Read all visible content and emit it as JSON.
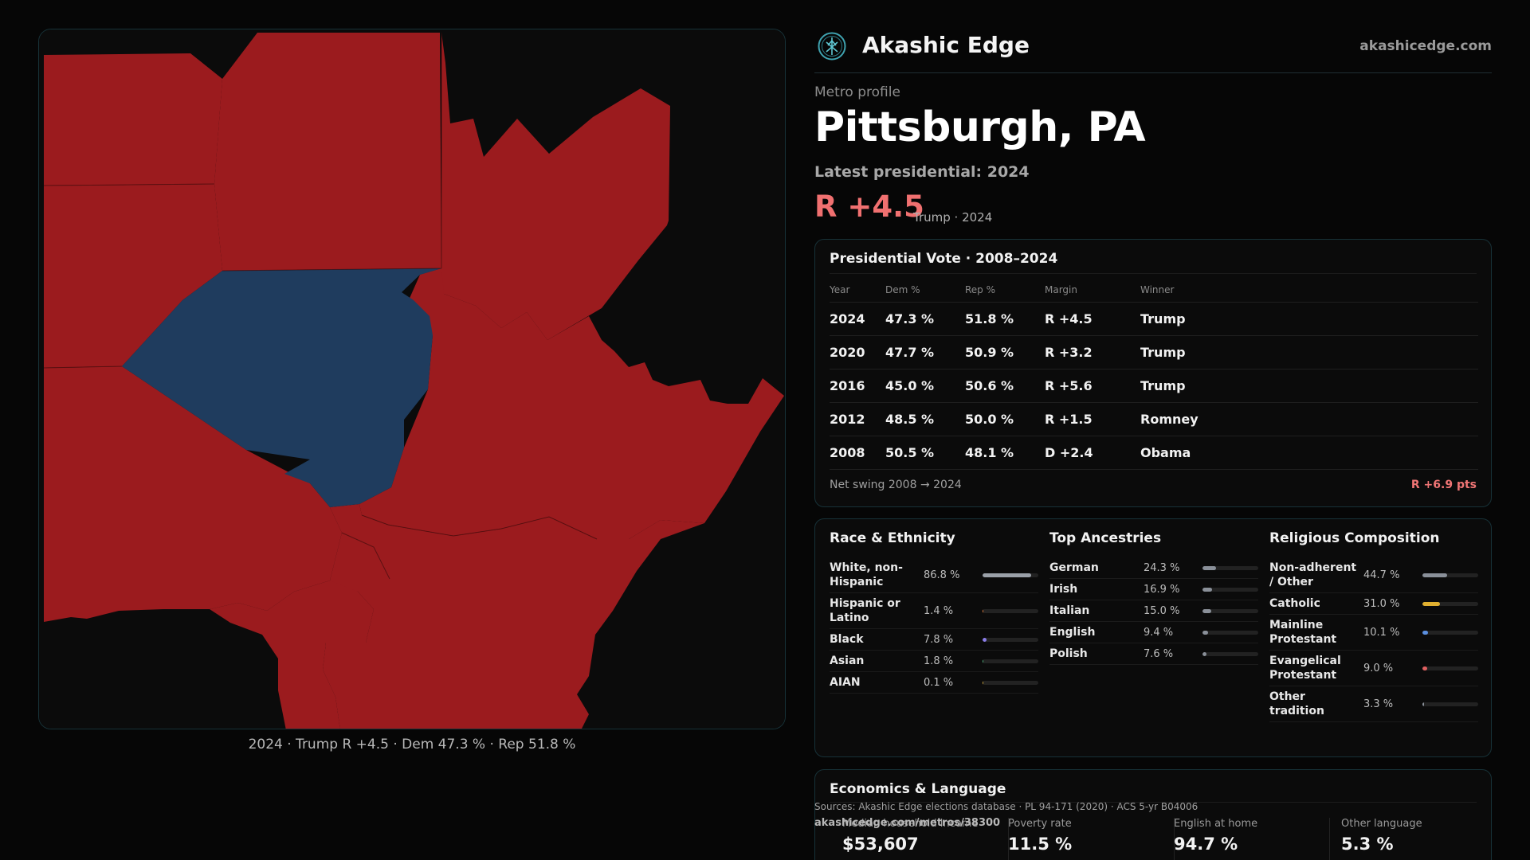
{
  "map": {
    "caption": "2024 · Trump R +4.5 · Dem 47.3 % · Rep 51.8 %",
    "colors": {
      "republican": "#9b1b1e",
      "democrat": "#1f3c5e",
      "background": "#0b0b0b"
    }
  },
  "brand": {
    "name": "Akashic Edge",
    "url": "akashicedge.com",
    "logo_icon": "compass-tree-icon"
  },
  "header": {
    "eyebrow": "Metro profile",
    "title": "Pittsburgh, PA",
    "latest": "Latest presidential: 2024",
    "margin": "R +4.5",
    "margin_sub": "Trump · 2024"
  },
  "vote": {
    "title": "Presidential Vote · 2008–2024",
    "columns": [
      "Year",
      "Dem %",
      "Rep %",
      "Margin",
      "Winner"
    ],
    "rows": [
      {
        "year": "2024",
        "dem": "47.3 %",
        "rep": "51.8 %",
        "margin": "R +4.5",
        "party": "R",
        "winner": "Trump"
      },
      {
        "year": "2020",
        "dem": "47.7 %",
        "rep": "50.9 %",
        "margin": "R +3.2",
        "party": "R",
        "winner": "Trump"
      },
      {
        "year": "2016",
        "dem": "45.0 %",
        "rep": "50.6 %",
        "margin": "R +5.6",
        "party": "R",
        "winner": "Trump"
      },
      {
        "year": "2012",
        "dem": "48.5 %",
        "rep": "50.0 %",
        "margin": "R +1.5",
        "party": "R",
        "winner": "Romney"
      },
      {
        "year": "2008",
        "dem": "50.5 %",
        "rep": "48.1 %",
        "margin": "D +2.4",
        "party": "D",
        "winner": "Obama"
      }
    ],
    "swing_label": "Net swing 2008 → 2024",
    "swing_value": "R +6.9 pts"
  },
  "race": {
    "title": "Race & Ethnicity",
    "items": [
      {
        "label": "White, non-Hispanic",
        "value": "86.8 %",
        "pct": 86.8,
        "color": "#9aa0a8"
      },
      {
        "label": "Hispanic or Latino",
        "value": "1.4 %",
        "pct": 1.4,
        "color": "#e07a3a"
      },
      {
        "label": "Black",
        "value": "7.8 %",
        "pct": 7.8,
        "color": "#8a7de8"
      },
      {
        "label": "Asian",
        "value": "1.8 %",
        "pct": 1.8,
        "color": "#4caf7a"
      },
      {
        "label": "AIAN",
        "value": "0.1 %",
        "pct": 0.1,
        "color": "#c9a13a"
      }
    ]
  },
  "ancestry": {
    "title": "Top Ancestries",
    "items": [
      {
        "label": "German",
        "value": "24.3 %",
        "pct": 24.3,
        "color": "#8a9099"
      },
      {
        "label": "Irish",
        "value": "16.9 %",
        "pct": 16.9,
        "color": "#8a9099"
      },
      {
        "label": "Italian",
        "value": "15.0 %",
        "pct": 15.0,
        "color": "#8a9099"
      },
      {
        "label": "English",
        "value": "9.4 %",
        "pct": 9.4,
        "color": "#8a9099"
      },
      {
        "label": "Polish",
        "value": "7.6 %",
        "pct": 7.6,
        "color": "#8a9099"
      }
    ]
  },
  "religion": {
    "title": "Religious Composition",
    "items": [
      {
        "label": "Non-adherent / Other",
        "value": "44.7 %",
        "pct": 44.7,
        "color": "#8a9099"
      },
      {
        "label": "Catholic",
        "value": "31.0 %",
        "pct": 31.0,
        "color": "#e0b030"
      },
      {
        "label": "Mainline Protestant",
        "value": "10.1 %",
        "pct": 10.1,
        "color": "#5b8fe0"
      },
      {
        "label": "Evangelical Protestant",
        "value": "9.0 %",
        "pct": 9.0,
        "color": "#e06060"
      },
      {
        "label": "Other tradition",
        "value": "3.3 %",
        "pct": 3.3,
        "color": "#8a9099"
      }
    ]
  },
  "economics": {
    "title": "Economics & Language",
    "items": [
      {
        "label": "Median household income",
        "value": "$53,607"
      },
      {
        "label": "Poverty rate",
        "value": "11.5 %"
      },
      {
        "label": "English at home",
        "value": "94.7 %"
      },
      {
        "label": "Other language",
        "value": "5.3 %"
      }
    ]
  },
  "footer": {
    "sources": "Sources: Akashic Edge elections database · PL 94-171 (2020) · ACS 5-yr B04006",
    "permalink": "akashicedge.com/metros/38300"
  }
}
